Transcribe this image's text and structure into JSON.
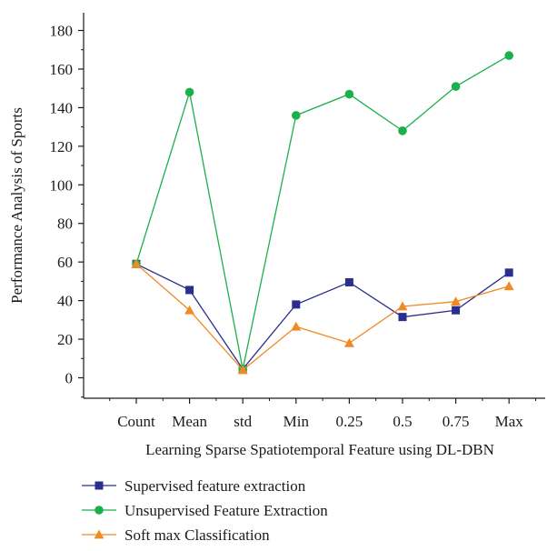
{
  "chart_data": {
    "type": "line",
    "xlabel": "Learning Sparse Spatiotemporal Feature using DL-DBN",
    "ylabel": "Performance Analysis of Sports",
    "categories": [
      "Count",
      "Mean",
      "std",
      "Min",
      "0.25",
      "0.5",
      "0.75",
      "Max"
    ],
    "ylim": [
      -12,
      190
    ],
    "yticks": [
      0,
      20,
      40,
      60,
      80,
      100,
      120,
      140,
      160,
      180
    ],
    "grid": false,
    "legend_position": "bottom-left",
    "series": [
      {
        "name": "Supervised feature extraction",
        "marker": "square",
        "color": "#2a2e8c",
        "values": [
          59,
          45.5,
          4.5,
          38,
          49.5,
          31.5,
          35,
          54.5
        ]
      },
      {
        "name": "Unsupervised Feature Extraction",
        "marker": "circle",
        "color": "#1ab04a",
        "values": [
          59,
          148,
          4.5,
          136,
          147,
          128,
          151,
          167
        ]
      },
      {
        "name": "Soft max Classification",
        "marker": "triangle",
        "color": "#f08a24",
        "values": [
          59,
          35,
          4,
          26.5,
          18,
          37,
          39.5,
          47.5
        ]
      }
    ]
  }
}
